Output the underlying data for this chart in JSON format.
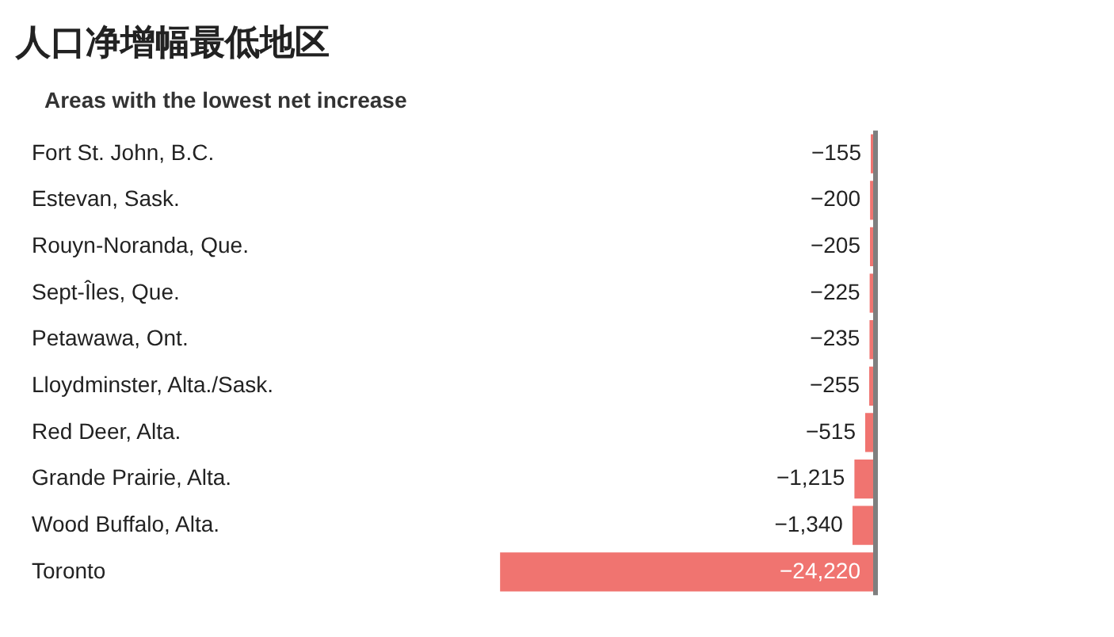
{
  "chart_data": {
    "type": "bar",
    "orientation": "horizontal",
    "title": "人口净增幅最低地区",
    "subtitle": "Areas with the lowest net increase",
    "categories": [
      "Fort St. John, B.C.",
      "Estevan, Sask.",
      "Rouyn-Noranda, Que.",
      "Sept-Îles, Que.",
      "Petawawa, Ont.",
      "Lloydminster, Alta./Sask.",
      "Red Deer, Alta.",
      "Grande Prairie, Alta.",
      "Wood Buffalo, Alta.",
      "Toronto"
    ],
    "values": [
      -155,
      -200,
      -205,
      -225,
      -235,
      -255,
      -515,
      -1215,
      -1340,
      -24220
    ],
    "value_labels": [
      "−155",
      "−200",
      "−205",
      "−225",
      "−235",
      "−255",
      "−515",
      "−1,215",
      "−1,340",
      "−24,220"
    ],
    "color": "#f07470",
    "grid": false,
    "legend": false
  }
}
